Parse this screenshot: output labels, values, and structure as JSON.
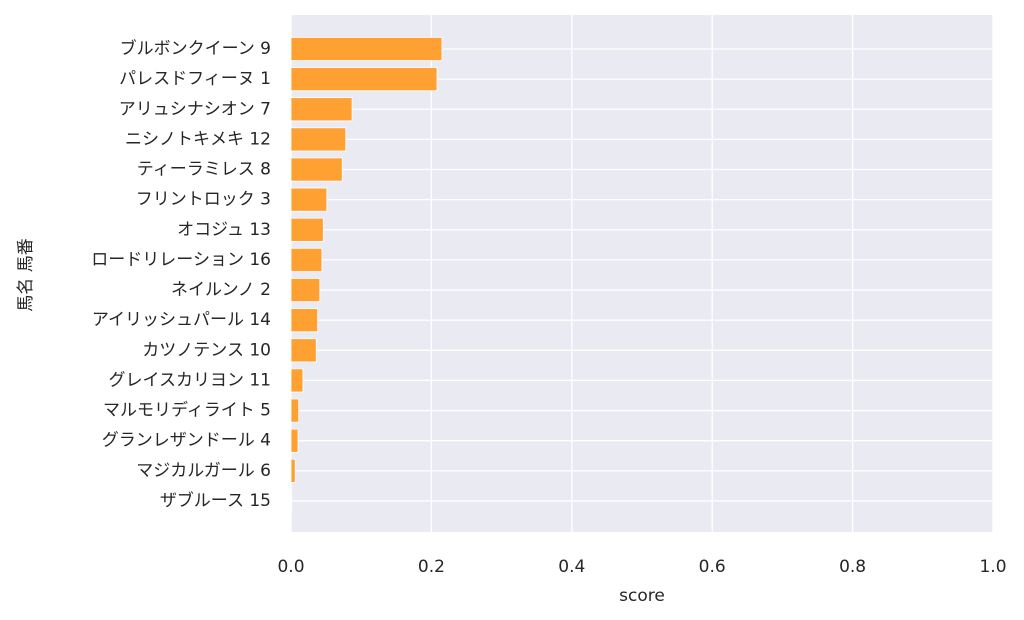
{
  "chart_data": {
    "type": "barh",
    "categories": [
      "ブルボンクイーン 9",
      "パレスドフィーヌ 1",
      "アリュシナシオン 7",
      "ニシノトキメキ 12",
      "ティーラミレス 8",
      "フリントロック 3",
      "オコジュ 13",
      "ロードリレーション 16",
      "ネイルンノ 2",
      "アイリッシュパール 14",
      "カツノテンス 10",
      "グレイスカリヨン 11",
      "マルモリディライト 5",
      "グランレザンドール 4",
      "マジカルガール 6",
      "ザブルース 15"
    ],
    "values": [
      0.215,
      0.208,
      0.087,
      0.078,
      0.073,
      0.051,
      0.046,
      0.044,
      0.041,
      0.038,
      0.036,
      0.017,
      0.011,
      0.01,
      0.006,
      0.001
    ],
    "color": "#ffa033",
    "xlabel": "score",
    "ylabel": "馬名 馬番",
    "xlim": [
      0,
      1
    ],
    "xticks": [
      {
        "value": 0,
        "label": "0.0"
      },
      0.2,
      0.4,
      0.6,
      0.8,
      {
        "value": 1,
        "label": "1.0"
      }
    ],
    "grid": true
  }
}
